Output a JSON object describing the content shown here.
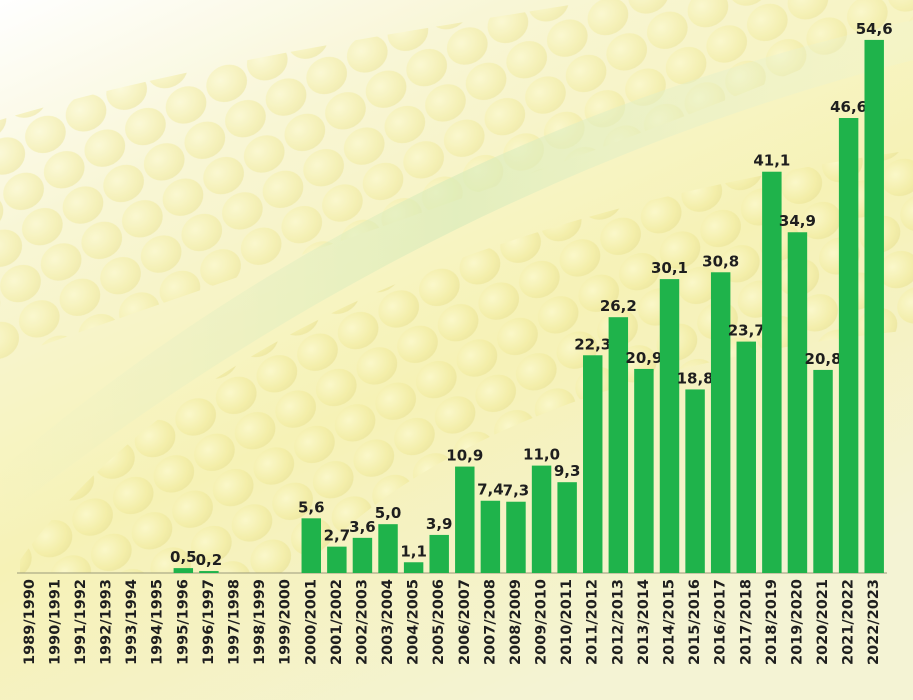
{
  "chart_data": {
    "type": "bar",
    "categories": [
      "1989/1990",
      "1990/1991",
      "1991/1992",
      "1992/1993",
      "1993/1994",
      "1994/1995",
      "1995/1996",
      "1996/1997",
      "1997/1998",
      "1998/1999",
      "1999/2000",
      "2000/2001",
      "2001/2002",
      "2002/2003",
      "2003/2004",
      "2004/2005",
      "2005/2006",
      "2006/2007",
      "2007/2008",
      "2008/2009",
      "2009/2010",
      "2010/2011",
      "2011/2012",
      "2012/2013",
      "2013/2014",
      "2014/2015",
      "2015/2016",
      "2016/2017",
      "2017/2018",
      "2018/2019",
      "2019/2020",
      "2020/2021",
      "2021/2022",
      "2022/2023"
    ],
    "values": [
      null,
      null,
      null,
      null,
      null,
      null,
      0.5,
      0.2,
      null,
      null,
      null,
      5.6,
      2.7,
      3.6,
      5.0,
      1.1,
      3.9,
      10.9,
      7.4,
      7.3,
      11.0,
      9.3,
      22.3,
      26.2,
      20.9,
      30.1,
      18.8,
      30.8,
      23.7,
      41.1,
      34.9,
      20.8,
      46.6,
      54.6
    ],
    "value_labels": [
      null,
      null,
      null,
      null,
      null,
      null,
      "0,5",
      "0,2",
      null,
      null,
      null,
      "5,6",
      "2,7",
      "3,6",
      "5,0",
      "1,1",
      "3,9",
      "10,9",
      "7,4",
      "7,3",
      "11,0",
      "9,3",
      "22,3",
      "26,2",
      "20,9",
      "30,1",
      "18,8",
      "30,8",
      "23,7",
      "41,1",
      "34,9",
      "20,8",
      "46,6",
      "54,6"
    ],
    "color": "#1fb34b",
    "ylim": [
      0,
      55
    ]
  }
}
